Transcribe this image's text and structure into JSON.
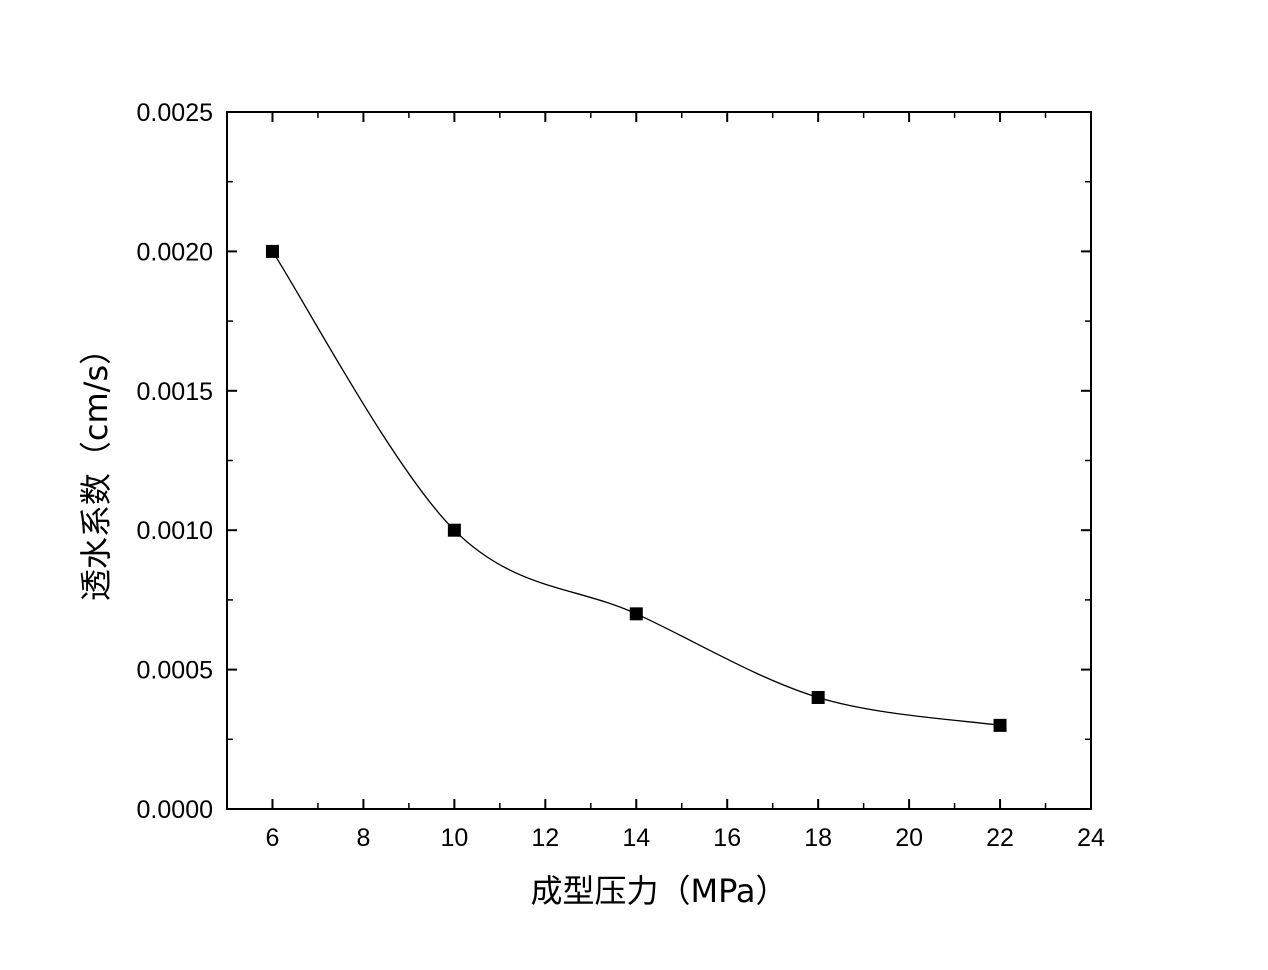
{
  "chart_data": {
    "type": "line",
    "title": "",
    "xlabel": "成型压力（MPa）",
    "ylabel": "透水系数（cm/s）",
    "xlim": [
      5,
      24
    ],
    "ylim": [
      0,
      0.0025
    ],
    "x_ticks": [
      6,
      8,
      10,
      12,
      14,
      16,
      18,
      20,
      22,
      24
    ],
    "y_ticks": [
      0.0,
      0.0005,
      0.001,
      0.0015,
      0.002,
      0.0025
    ],
    "x_tick_labels": [
      "6",
      "8",
      "10",
      "12",
      "14",
      "16",
      "18",
      "20",
      "22",
      "24"
    ],
    "y_tick_labels": [
      "0.0000",
      "0.0005",
      "0.0010",
      "0.0015",
      "0.0020",
      "0.0025"
    ],
    "x": [
      6,
      10,
      14,
      18,
      22
    ],
    "series": [
      {
        "values": [
          0.002,
          0.001,
          0.0007,
          0.0004,
          0.0003
        ],
        "marker": "square",
        "line": "smooth",
        "color": "#000000"
      }
    ],
    "grid": false,
    "legend": "none"
  }
}
